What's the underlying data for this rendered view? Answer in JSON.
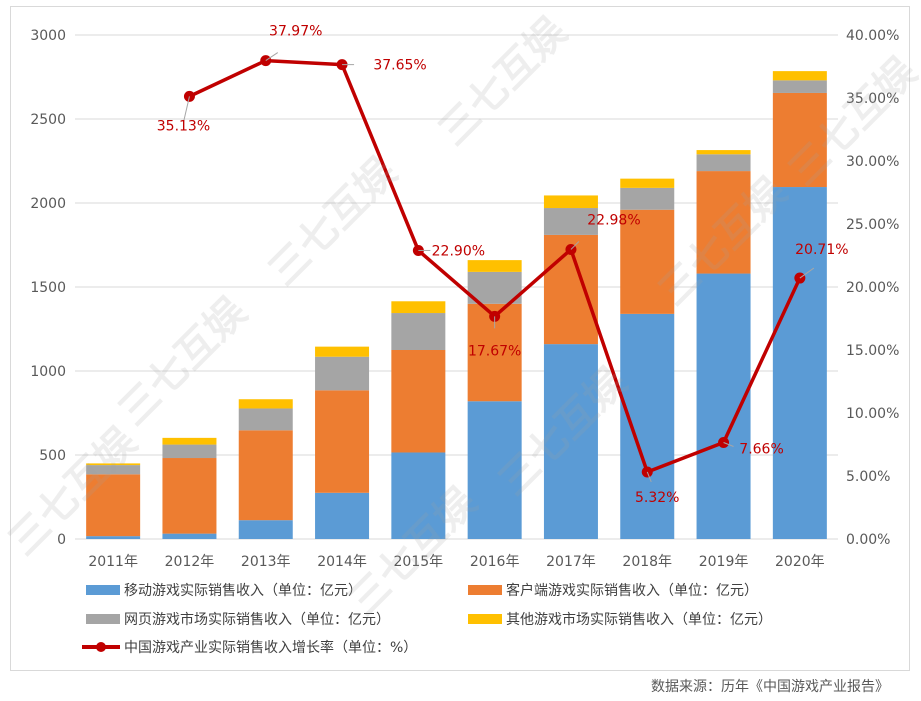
{
  "watermark": "三七互娱",
  "source": "数据来源：历年《中国游戏产业报告》",
  "legend": {
    "mobile": "移动游戏实际销售收入（单位：亿元）",
    "client": "客户端游戏实际销售收入（单位：亿元）",
    "web": "网页游戏市场实际销售收入（单位：亿元）",
    "other": "其他游戏市场实际销售收入（单位：亿元）",
    "growth": "中国游戏产业实际销售收入增长率（单位：%）"
  },
  "colors": {
    "mobile": "#5b9bd5",
    "client": "#ed7d31",
    "web": "#a5a5a5",
    "other": "#ffc000",
    "growth": "#c00000"
  },
  "chart_data": {
    "type": "bar",
    "stacked": true,
    "categories": [
      "2011年",
      "2012年",
      "2013年",
      "2014年",
      "2015年",
      "2016年",
      "2017年",
      "2018年",
      "2019年",
      "2020年"
    ],
    "series": [
      {
        "name": "移动游戏实际销售收入（单位：亿元）",
        "key": "mobile",
        "values": [
          17,
          32,
          112,
          275,
          515,
          820,
          1160,
          1340,
          1580,
          2095
        ]
      },
      {
        "name": "客户端游戏实际销售收入（单位：亿元）",
        "key": "client",
        "values": [
          368,
          450,
          535,
          610,
          610,
          580,
          650,
          620,
          610,
          560
        ]
      },
      {
        "name": "网页游戏市场实际销售收入（单位：亿元）",
        "key": "web",
        "values": [
          55,
          80,
          130,
          200,
          220,
          190,
          160,
          130,
          100,
          75
        ]
      },
      {
        "name": "其他游戏市场实际销售收入（单位：亿元）",
        "key": "other",
        "values": [
          10,
          40,
          55,
          60,
          70,
          70,
          75,
          55,
          25,
          55
        ]
      }
    ],
    "line": {
      "name": "中国游戏产业实际销售收入增长率（单位：%）",
      "start_index": 1,
      "values": [
        35.13,
        37.97,
        37.65,
        22.9,
        17.67,
        22.98,
        5.32,
        7.66,
        20.71
      ],
      "labels": [
        "35.13%",
        "37.97%",
        "37.65%",
        "22.90%",
        "17.67%",
        "22.98%",
        "5.32%",
        "7.66%",
        "20.71%"
      ]
    },
    "ylim_left": [
      0,
      3000
    ],
    "yticks_left": [
      "0",
      "500",
      "1000",
      "1500",
      "2000",
      "2500",
      "3000"
    ],
    "ylim_right": [
      0,
      40
    ],
    "yticks_right": [
      "0.00%",
      "5.00%",
      "10.00%",
      "15.00%",
      "20.00%",
      "25.00%",
      "30.00%",
      "35.00%",
      "40.00%"
    ],
    "grid": true
  }
}
